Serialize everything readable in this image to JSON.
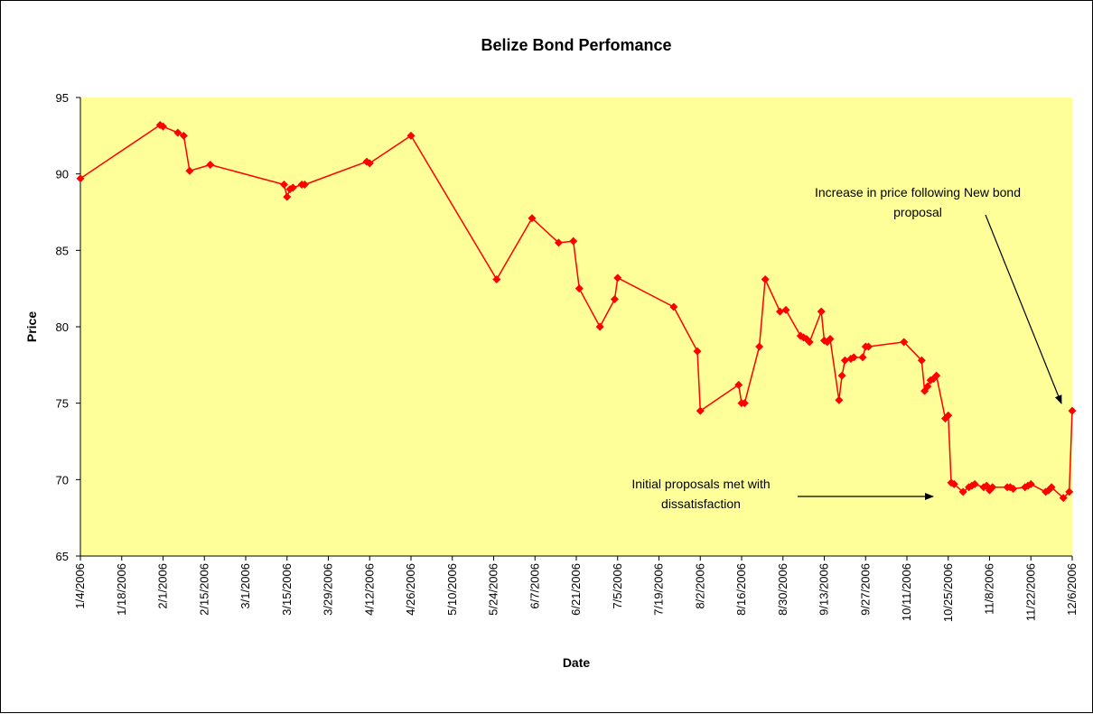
{
  "chart_data": {
    "type": "line",
    "title": "Belize Bond Perfomance",
    "xlabel": "Date",
    "ylabel": "Price",
    "ylim": [
      65,
      95
    ],
    "y_ticks": [
      65,
      70,
      75,
      80,
      85,
      90,
      95
    ],
    "x_range": [
      "2006-01-04",
      "2006-12-06"
    ],
    "x_tick_labels": [
      "1/4/2006",
      "1/18/2006",
      "2/1/2006",
      "2/15/2006",
      "3/1/2006",
      "3/15/2006",
      "3/29/2006",
      "4/12/2006",
      "4/26/2006",
      "5/10/2006",
      "5/24/2006",
      "6/7/2006",
      "6/21/2006",
      "7/5/2006",
      "7/19/2006",
      "8/2/2006",
      "8/16/2006",
      "8/30/2006",
      "9/13/2006",
      "9/27/2006",
      "10/11/2006",
      "10/25/2006",
      "11/8/2006",
      "11/22/2006",
      "12/6/2006"
    ],
    "grid": false,
    "plot_background": "#FFFF99",
    "series": [
      {
        "color": "#FF0000",
        "marker": "diamond",
        "x": [
          "2006-01-04",
          "2006-01-31",
          "2006-02-01",
          "2006-02-06",
          "2006-02-08",
          "2006-02-10",
          "2006-02-17",
          "2006-03-14",
          "2006-03-15",
          "2006-03-16",
          "2006-03-17",
          "2006-03-20",
          "2006-03-21",
          "2006-04-11",
          "2006-04-12",
          "2006-04-26",
          "2006-05-25",
          "2006-06-06",
          "2006-06-15",
          "2006-06-20",
          "2006-06-22",
          "2006-06-29",
          "2006-07-04",
          "2006-07-05",
          "2006-07-24",
          "2006-08-01",
          "2006-08-02",
          "2006-08-15",
          "2006-08-16",
          "2006-08-17",
          "2006-08-22",
          "2006-08-24",
          "2006-08-29",
          "2006-08-31",
          "2006-09-05",
          "2006-09-06",
          "2006-09-07",
          "2006-09-08",
          "2006-09-12",
          "2006-09-13",
          "2006-09-14",
          "2006-09-15",
          "2006-09-18",
          "2006-09-19",
          "2006-09-20",
          "2006-09-22",
          "2006-09-23",
          "2006-09-26",
          "2006-09-27",
          "2006-09-28",
          "2006-10-10",
          "2006-10-16",
          "2006-10-17",
          "2006-10-18",
          "2006-10-19",
          "2006-10-20",
          "2006-10-21",
          "2006-10-24",
          "2006-10-25",
          "2006-10-26",
          "2006-10-27",
          "2006-10-30",
          "2006-11-01",
          "2006-11-02",
          "2006-11-03",
          "2006-11-06",
          "2006-11-07",
          "2006-11-08",
          "2006-11-09",
          "2006-11-14",
          "2006-11-15",
          "2006-11-16",
          "2006-11-20",
          "2006-11-21",
          "2006-11-22",
          "2006-11-27",
          "2006-11-28",
          "2006-11-29",
          "2006-12-03",
          "2006-12-05",
          "2006-12-06"
        ],
        "y": [
          89.7,
          93.2,
          93.1,
          92.7,
          92.5,
          90.2,
          90.6,
          89.3,
          88.5,
          89.0,
          89.1,
          89.3,
          89.3,
          90.8,
          90.7,
          92.5,
          83.1,
          87.1,
          85.5,
          85.6,
          82.5,
          80.0,
          81.8,
          83.2,
          81.3,
          78.4,
          74.5,
          76.2,
          75.0,
          75.0,
          78.7,
          83.1,
          81.0,
          81.1,
          79.4,
          79.3,
          79.2,
          79.0,
          81.0,
          79.1,
          79.0,
          79.2,
          75.2,
          76.8,
          77.8,
          77.9,
          78.0,
          78.0,
          78.7,
          78.7,
          79.0,
          77.8,
          75.8,
          76.1,
          76.5,
          76.6,
          76.8,
          74.0,
          74.2,
          69.8,
          69.7,
          69.2,
          69.5,
          69.6,
          69.7,
          69.5,
          69.6,
          69.3,
          69.5,
          69.5,
          69.5,
          69.4,
          69.5,
          69.6,
          69.7,
          69.2,
          69.3,
          69.5,
          68.8,
          69.2,
          74.5
        ]
      }
    ],
    "annotations": [
      {
        "text_lines": [
          "Increase in price following New bond",
          "proposal"
        ],
        "target_x": "2006-12-06",
        "target_y": 74.5
      },
      {
        "text_lines": [
          "Initial proposals met with",
          "dissatisfaction"
        ],
        "target_x": "2006-10-25",
        "target_y": 69.3
      }
    ]
  }
}
